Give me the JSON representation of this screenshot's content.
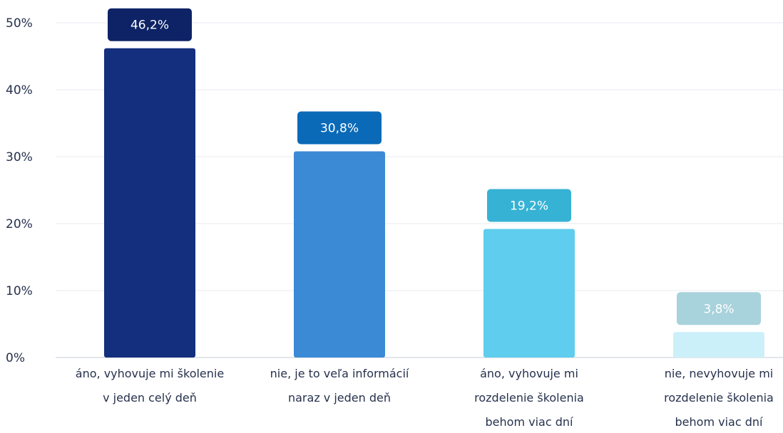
{
  "chart_data": {
    "type": "bar",
    "categories": [
      [
        "áno, vyhovuje mi školenie",
        "v jeden celý deň"
      ],
      [
        "nie, je to veľa informácií",
        "naraz v jeden deň"
      ],
      [
        "áno, vyhovuje mi",
        "rozdelenie školenia",
        "behom viac dní"
      ],
      [
        "nie, nevyhovuje mi",
        "rozdelenie školenia",
        "behom viac dní"
      ]
    ],
    "values": [
      46.2,
      30.8,
      19.2,
      3.8
    ],
    "data_labels": [
      "46,2%",
      "30,8%",
      "19,2%",
      "3,8%"
    ],
    "bar_colors": [
      "#142f7d",
      "#3a8ad6",
      "#5ecdee",
      "#ccf0fa"
    ],
    "label_colors": [
      "#0e2366",
      "#0b6ab8",
      "#36b2d4",
      "#a8d2dc"
    ],
    "y_ticks": [
      "0%",
      "10%",
      "20%",
      "30%",
      "40%",
      "50%"
    ],
    "ylim": [
      0,
      50
    ],
    "grid": true,
    "legend": "none"
  }
}
